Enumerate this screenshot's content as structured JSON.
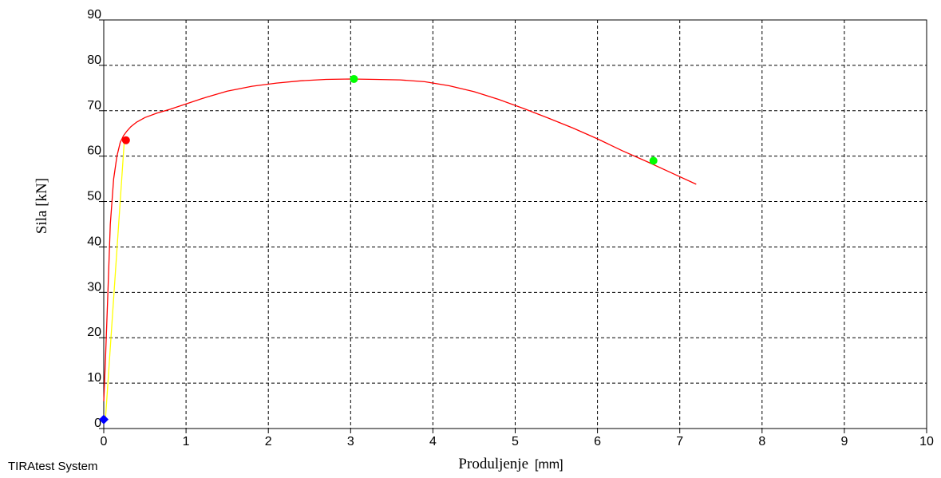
{
  "footer": {
    "system_label": "TIRAtest System"
  },
  "chart_data": {
    "type": "line",
    "title": "",
    "ylabel": "Sila [kN]",
    "xlabel": "Produljenje",
    "xlabel_unit": "[mm]",
    "xlim": [
      0,
      10
    ],
    "ylim": [
      0,
      90
    ],
    "x_ticks": [
      "0",
      "1",
      "2",
      "3",
      "4",
      "5",
      "6",
      "7",
      "8",
      "9",
      "10"
    ],
    "y_ticks": [
      "0",
      "10",
      "20",
      "30",
      "40",
      "50",
      "60",
      "70",
      "80",
      "90"
    ],
    "grid": true,
    "series": [
      {
        "color": "#ff0000",
        "x": [
          0.0,
          0.02,
          0.05,
          0.08,
          0.12,
          0.16,
          0.2,
          0.24,
          0.28,
          0.33,
          0.4,
          0.5,
          0.65,
          0.8,
          1.0,
          1.25,
          1.5,
          1.8,
          2.1,
          2.4,
          2.7,
          3.0,
          3.3,
          3.6,
          3.9,
          4.2,
          4.5,
          4.8,
          5.1,
          5.4,
          5.7,
          6.0,
          6.3,
          6.6,
          6.9,
          7.2
        ],
        "y": [
          6,
          15,
          30,
          45,
          55,
          60,
          63,
          64.5,
          65.5,
          66.5,
          67.5,
          68.5,
          69.5,
          70.3,
          71.5,
          73,
          74.3,
          75.4,
          76.1,
          76.6,
          76.9,
          77.0,
          76.9,
          76.8,
          76.4,
          75.5,
          74.2,
          72.5,
          70.5,
          68.4,
          66.2,
          63.8,
          61.2,
          58.8,
          56.3,
          53.8
        ]
      },
      {
        "color": "#ffff00",
        "x": [
          0.02,
          0.25
        ],
        "y": [
          2,
          63.5
        ]
      }
    ],
    "markers": [
      {
        "x": 0.0,
        "y": 2,
        "color": "#0000ff",
        "shape": "diamond"
      },
      {
        "x": 0.27,
        "y": 63.5,
        "color": "#ff0000",
        "shape": "circle"
      },
      {
        "x": 3.04,
        "y": 77.0,
        "color": "#00ff00",
        "shape": "circle"
      },
      {
        "x": 6.68,
        "y": 59.0,
        "color": "#00ff00",
        "shape": "circle"
      }
    ]
  }
}
